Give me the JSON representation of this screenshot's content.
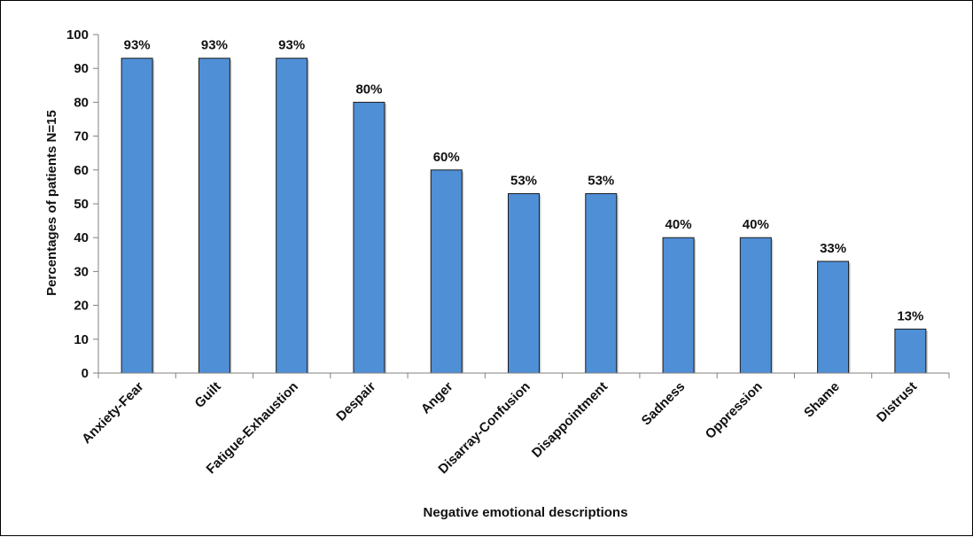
{
  "chart_data": {
    "type": "bar",
    "categories": [
      "Anxiety-Fear",
      "Guilt",
      "Fatigue-Exhaustion",
      "Despair",
      "Anger",
      "Disarray-Confusion",
      "Disappointment",
      "Sadness",
      "Oppression",
      "Shame",
      "Distrust"
    ],
    "values": [
      93,
      93,
      93,
      80,
      60,
      53,
      53,
      40,
      40,
      33,
      13
    ],
    "data_labels": [
      "93%",
      "93%",
      "93%",
      "80%",
      "60%",
      "53%",
      "53%",
      "40%",
      "40%",
      "33%",
      "13%"
    ],
    "xlabel": "Negative emotional descriptions",
    "ylabel": "Percentages of patients N=15",
    "ylim": [
      0,
      100
    ],
    "yticks": [
      0,
      10,
      20,
      30,
      40,
      50,
      60,
      70,
      80,
      90,
      100
    ],
    "grid": false,
    "legend": "none",
    "bar_color": "#4f8fd6"
  }
}
